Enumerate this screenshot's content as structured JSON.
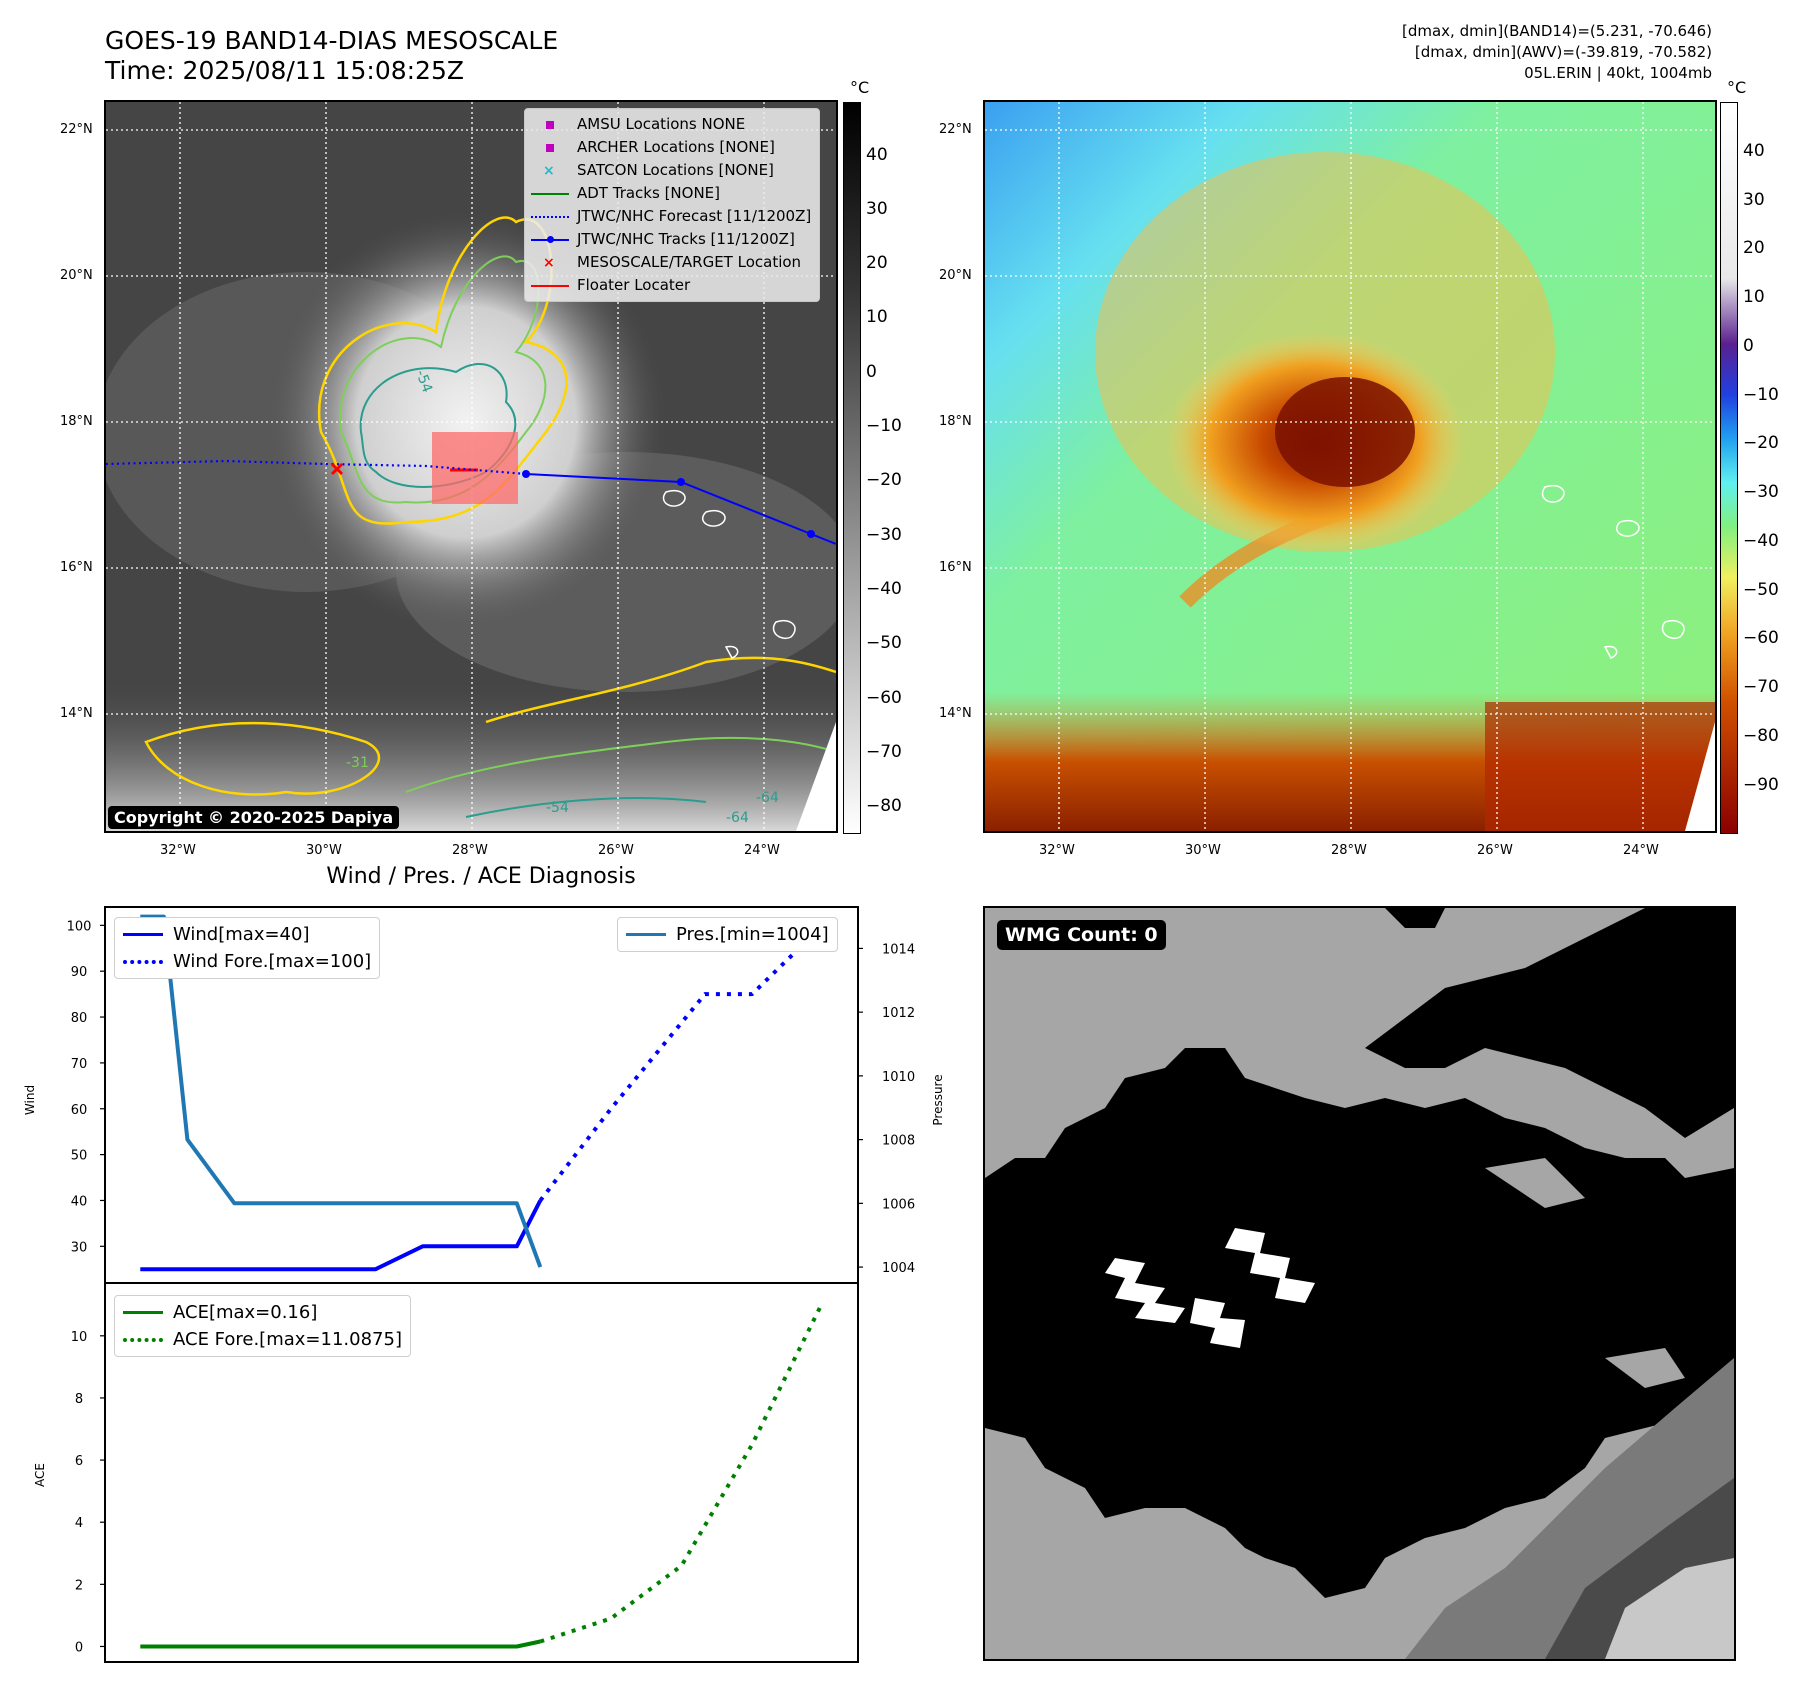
{
  "header": {
    "title_line1": "GOES-19 BAND14-DIAS MESOSCALE",
    "title_line2": "Time: 2025/08/11 15:08:25Z",
    "stats_line1": "[dmax, dmin](BAND14)=(5.231, -70.646)",
    "stats_line2": "[dmax, dmin](AWV)=(-39.819, -70.582)",
    "stats_line3": "05L.ERIN | 40kt, 1004mb"
  },
  "map_axes": {
    "lat_labels": [
      "22°N",
      "20°N",
      "18°N",
      "16°N",
      "14°N"
    ],
    "lon_labels": [
      "32°W",
      "30°W",
      "28°W",
      "26°W",
      "24°W"
    ]
  },
  "ir_panel": {
    "colorbar_unit": "°C",
    "colorbar_ticks": [
      "40",
      "30",
      "20",
      "10",
      "0",
      "−10",
      "−20",
      "−30",
      "−40",
      "−50",
      "−60",
      "−70",
      "−80"
    ],
    "contour_labels": [
      "-54",
      "-54",
      "-64",
      "-64",
      "-31"
    ],
    "copyright": "Copyright © 2020-2025 Dapiya",
    "legend": [
      {
        "label": "AMSU Locations NONE",
        "symbol": "square",
        "color": "#bf00bf"
      },
      {
        "label": "ARCHER Locations [NONE]",
        "symbol": "square",
        "color": "#bf00bf"
      },
      {
        "label": "SATCON Locations [NONE]",
        "symbol": "x",
        "color": "#17becf"
      },
      {
        "label": "ADT Tracks [NONE]",
        "symbol": "line",
        "color": "#008000"
      },
      {
        "label": "JTWC/NHC Forecast [11/1200Z]",
        "symbol": "dotted",
        "color": "#0000ff"
      },
      {
        "label": "JTWC/NHC Tracks [11/1200Z]",
        "symbol": "line-dot",
        "color": "#0000ff"
      },
      {
        "label": "MESOSCALE/TARGET Location",
        "symbol": "x",
        "color": "#ff0000"
      },
      {
        "label": "Floater Locater",
        "symbol": "line",
        "color": "#ff0000"
      }
    ]
  },
  "wv_panel": {
    "colorbar_unit": "°C",
    "colorbar_ticks": [
      "40",
      "30",
      "20",
      "10",
      "0",
      "−10",
      "−20",
      "−30",
      "−40",
      "−50",
      "−60",
      "−70",
      "−80",
      "−90"
    ]
  },
  "diagnosis": {
    "title": "Wind / Pres. / ACE Diagnosis",
    "wind_ylabel": "Wind",
    "pressure_ylabel": "Pressure",
    "ace_ylabel": "ACE",
    "wind_legend": [
      "Wind[max=40]",
      "Wind Fore.[max=100]"
    ],
    "pres_legend": [
      "Pres.[min=1004]"
    ],
    "ace_legend": [
      "ACE[max=0.16]",
      "ACE Fore.[max=11.0875]"
    ]
  },
  "wmg": {
    "badge": "WMG Count: 0"
  },
  "chart_data": [
    {
      "type": "line",
      "name": "wind-pressure",
      "wind_ylim": [
        22,
        104
      ],
      "wind_yticks": [
        30,
        40,
        50,
        60,
        70,
        80,
        90,
        100
      ],
      "pres_ylim": [
        1003.5,
        1015.3
      ],
      "pres_yticks": [
        1004,
        1006,
        1008,
        1010,
        1012,
        1014
      ],
      "xlim": [
        -1.5,
        30.5
      ],
      "series": [
        {
          "name": "Wind[max=40]",
          "color": "#0000ff",
          "style": "solid",
          "x": [
            0,
            2,
            4,
            6,
            8,
            10,
            12,
            14,
            16,
            17
          ],
          "values": [
            25,
            25,
            25,
            25,
            25,
            25,
            30,
            30,
            30,
            40
          ]
        },
        {
          "name": "Wind Fore.[max=100]",
          "color": "#0000ff",
          "style": "dotted",
          "x": [
            17,
            20,
            24,
            26,
            29
          ],
          "values": [
            40,
            60,
            85,
            85,
            100
          ]
        },
        {
          "name": "Pres.[min=1004]",
          "color": "#1f77b4",
          "style": "solid",
          "axis": "right",
          "x": [
            0,
            1,
            2,
            4,
            6,
            8,
            10,
            12,
            14,
            16,
            17
          ],
          "values": [
            1015,
            1015,
            1008,
            1006,
            1006,
            1006,
            1006,
            1006,
            1006,
            1006,
            1004
          ]
        }
      ]
    },
    {
      "type": "line",
      "name": "ace",
      "ylim": [
        -0.5,
        11.7
      ],
      "yticks": [
        0,
        2,
        4,
        6,
        8,
        10
      ],
      "xlim": [
        -1.5,
        30.5
      ],
      "series": [
        {
          "name": "ACE[max=0.16]",
          "color": "#008000",
          "style": "solid",
          "x": [
            0,
            4,
            8,
            12,
            16,
            17
          ],
          "values": [
            0,
            0,
            0,
            0,
            0,
            0.16
          ]
        },
        {
          "name": "ACE Fore.[max=11.0875]",
          "color": "#008000",
          "style": "dotted",
          "x": [
            17,
            20,
            23,
            26,
            29
          ],
          "values": [
            0.16,
            0.9,
            2.6,
            6.5,
            11.0875
          ]
        }
      ]
    }
  ]
}
